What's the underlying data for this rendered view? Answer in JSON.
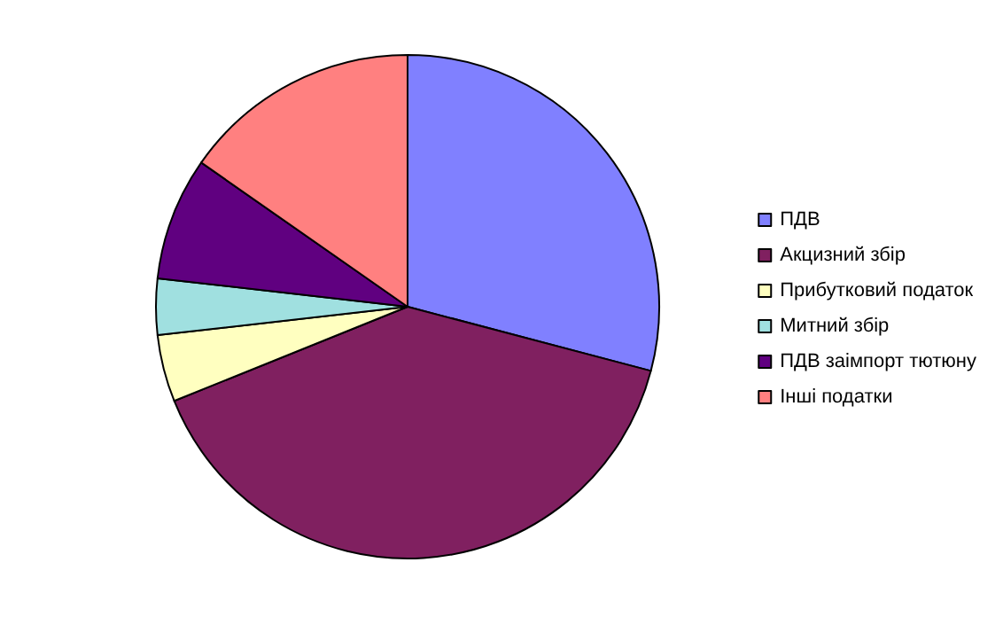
{
  "chart_data": {
    "type": "pie",
    "categories": [
      "ПДВ",
      "Акцизний збір",
      "Прибутковий податок",
      "Митний збір",
      "ПДВ заімпорт тютюну",
      "Інші податки"
    ],
    "values": [
      29.1,
      39.8,
      4.3,
      3.6,
      7.9,
      15.3
    ],
    "colors": [
      "#8080ff",
      "#802060",
      "#ffffc0",
      "#a0e0e0",
      "#600080",
      "#ff8080"
    ],
    "legend": "right"
  }
}
